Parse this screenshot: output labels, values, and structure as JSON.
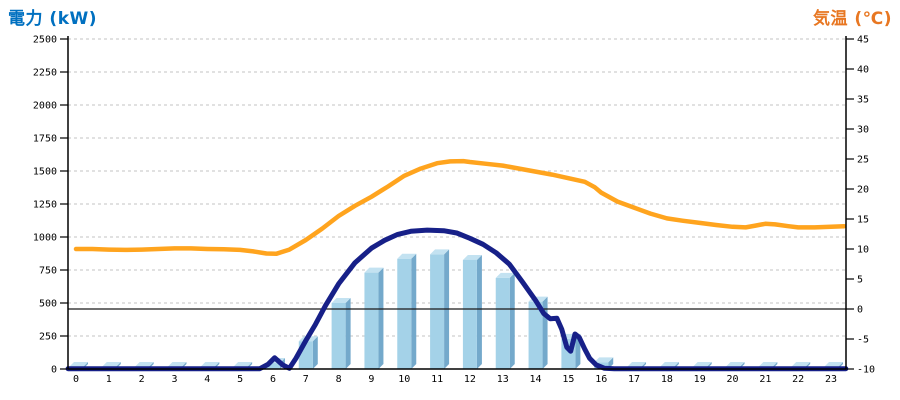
{
  "chart_data": {
    "type": "combo",
    "title": "",
    "left_axis": {
      "title": "電力 (kW)",
      "title_color": "#0070C0",
      "min": 0,
      "max": 2500,
      "ticks": [
        0,
        250,
        500,
        750,
        1000,
        1250,
        1500,
        1750,
        2000,
        2250,
        2500
      ],
      "gridlines": true
    },
    "right_axis": {
      "title": "気温 (℃)",
      "title_color": "#E87722",
      "min": -10,
      "max": 45,
      "ticks": [
        -10,
        -5,
        0,
        5,
        10,
        15,
        20,
        25,
        30,
        35,
        40,
        45
      ],
      "zero_line": true
    },
    "x_axis": {
      "ticks": [
        0,
        1,
        2,
        3,
        4,
        5,
        6,
        7,
        8,
        9,
        10,
        11,
        12,
        13,
        14,
        15,
        16,
        17,
        18,
        19,
        20,
        21,
        22,
        23
      ]
    },
    "series": [
      {
        "id": "power-bars",
        "type": "bar",
        "axis": "left",
        "x": [
          0,
          1,
          2,
          3,
          4,
          5,
          6,
          7,
          8,
          9,
          10,
          11,
          12,
          13,
          14,
          15,
          16,
          17,
          18,
          19,
          20,
          21,
          22,
          23
        ],
        "values": [
          15,
          15,
          15,
          15,
          15,
          15,
          45,
          210,
          500,
          730,
          835,
          868,
          826,
          690,
          510,
          228,
          50,
          15,
          15,
          15,
          15,
          15,
          15,
          15
        ]
      },
      {
        "id": "power-line",
        "type": "line",
        "axis": "left",
        "points": [
          [
            -0.24,
            2
          ],
          [
            1,
            2
          ],
          [
            2,
            2
          ],
          [
            3,
            2
          ],
          [
            4,
            2
          ],
          [
            5,
            2
          ],
          [
            5.6,
            2
          ],
          [
            5.85,
            35
          ],
          [
            6.05,
            85
          ],
          [
            6.3,
            30
          ],
          [
            6.5,
            5
          ],
          [
            6.7,
            80
          ],
          [
            7,
            215
          ],
          [
            7.3,
            340
          ],
          [
            7.6,
            480
          ],
          [
            8,
            645
          ],
          [
            8.5,
            805
          ],
          [
            9,
            915
          ],
          [
            9.4,
            975
          ],
          [
            9.8,
            1020
          ],
          [
            10.2,
            1043
          ],
          [
            10.7,
            1052
          ],
          [
            11.2,
            1048
          ],
          [
            11.6,
            1030
          ],
          [
            12,
            990
          ],
          [
            12.4,
            945
          ],
          [
            12.8,
            880
          ],
          [
            13.2,
            795
          ],
          [
            13.6,
            660
          ],
          [
            14,
            520
          ],
          [
            14.25,
            420
          ],
          [
            14.45,
            380
          ],
          [
            14.65,
            385
          ],
          [
            14.8,
            300
          ],
          [
            14.95,
            165
          ],
          [
            15.07,
            135
          ],
          [
            15.2,
            265
          ],
          [
            15.33,
            240
          ],
          [
            15.5,
            150
          ],
          [
            15.65,
            80
          ],
          [
            15.85,
            30
          ],
          [
            16.1,
            5
          ],
          [
            16.4,
            2
          ],
          [
            17,
            2
          ],
          [
            18,
            2
          ],
          [
            19,
            2
          ],
          [
            20,
            2
          ],
          [
            21,
            2
          ],
          [
            22,
            2
          ],
          [
            23,
            2
          ],
          [
            23.45,
            2
          ]
        ]
      },
      {
        "id": "temperature-line",
        "type": "line",
        "axis": "right",
        "points": [
          [
            0,
            10
          ],
          [
            0.5,
            10
          ],
          [
            1,
            9.9
          ],
          [
            1.5,
            9.85
          ],
          [
            2,
            9.9
          ],
          [
            2.5,
            10
          ],
          [
            3,
            10.1
          ],
          [
            3.5,
            10.1
          ],
          [
            4,
            10
          ],
          [
            4.5,
            9.95
          ],
          [
            5,
            9.85
          ],
          [
            5.4,
            9.6
          ],
          [
            5.8,
            9.25
          ],
          [
            6.1,
            9.2
          ],
          [
            6.5,
            9.9
          ],
          [
            7,
            11.5
          ],
          [
            7.5,
            13.4
          ],
          [
            8,
            15.5
          ],
          [
            8.5,
            17.2
          ],
          [
            9,
            18.7
          ],
          [
            9.5,
            20.4
          ],
          [
            10,
            22.2
          ],
          [
            10.5,
            23.4
          ],
          [
            11,
            24.3
          ],
          [
            11.4,
            24.6
          ],
          [
            11.8,
            24.65
          ],
          [
            12,
            24.5
          ],
          [
            12.5,
            24.2
          ],
          [
            13,
            23.9
          ],
          [
            13.5,
            23.4
          ],
          [
            14,
            22.9
          ],
          [
            14.5,
            22.4
          ],
          [
            15,
            21.8
          ],
          [
            15.5,
            21.2
          ],
          [
            15.8,
            20.3
          ],
          [
            16,
            19.4
          ],
          [
            16.5,
            17.9
          ],
          [
            17,
            16.9
          ],
          [
            17.5,
            15.9
          ],
          [
            18,
            15.1
          ],
          [
            18.5,
            14.7
          ],
          [
            19,
            14.35
          ],
          [
            19.5,
            14
          ],
          [
            20,
            13.7
          ],
          [
            20.4,
            13.6
          ],
          [
            20.7,
            13.9
          ],
          [
            21,
            14.2
          ],
          [
            21.3,
            14.1
          ],
          [
            21.7,
            13.8
          ],
          [
            22,
            13.6
          ],
          [
            22.5,
            13.6
          ],
          [
            23,
            13.7
          ],
          [
            23.4,
            13.8
          ]
        ]
      }
    ],
    "colors": {
      "bar_front": "#A4D2E8",
      "bar_top": "#C3E2F1",
      "bar_side": "#74A9CB",
      "power_line": "#172088",
      "temperature_line": "#FFA41E",
      "gridline": "#C3C3C3",
      "zero_line": "#1A1A1A",
      "axis": "#000000"
    }
  }
}
